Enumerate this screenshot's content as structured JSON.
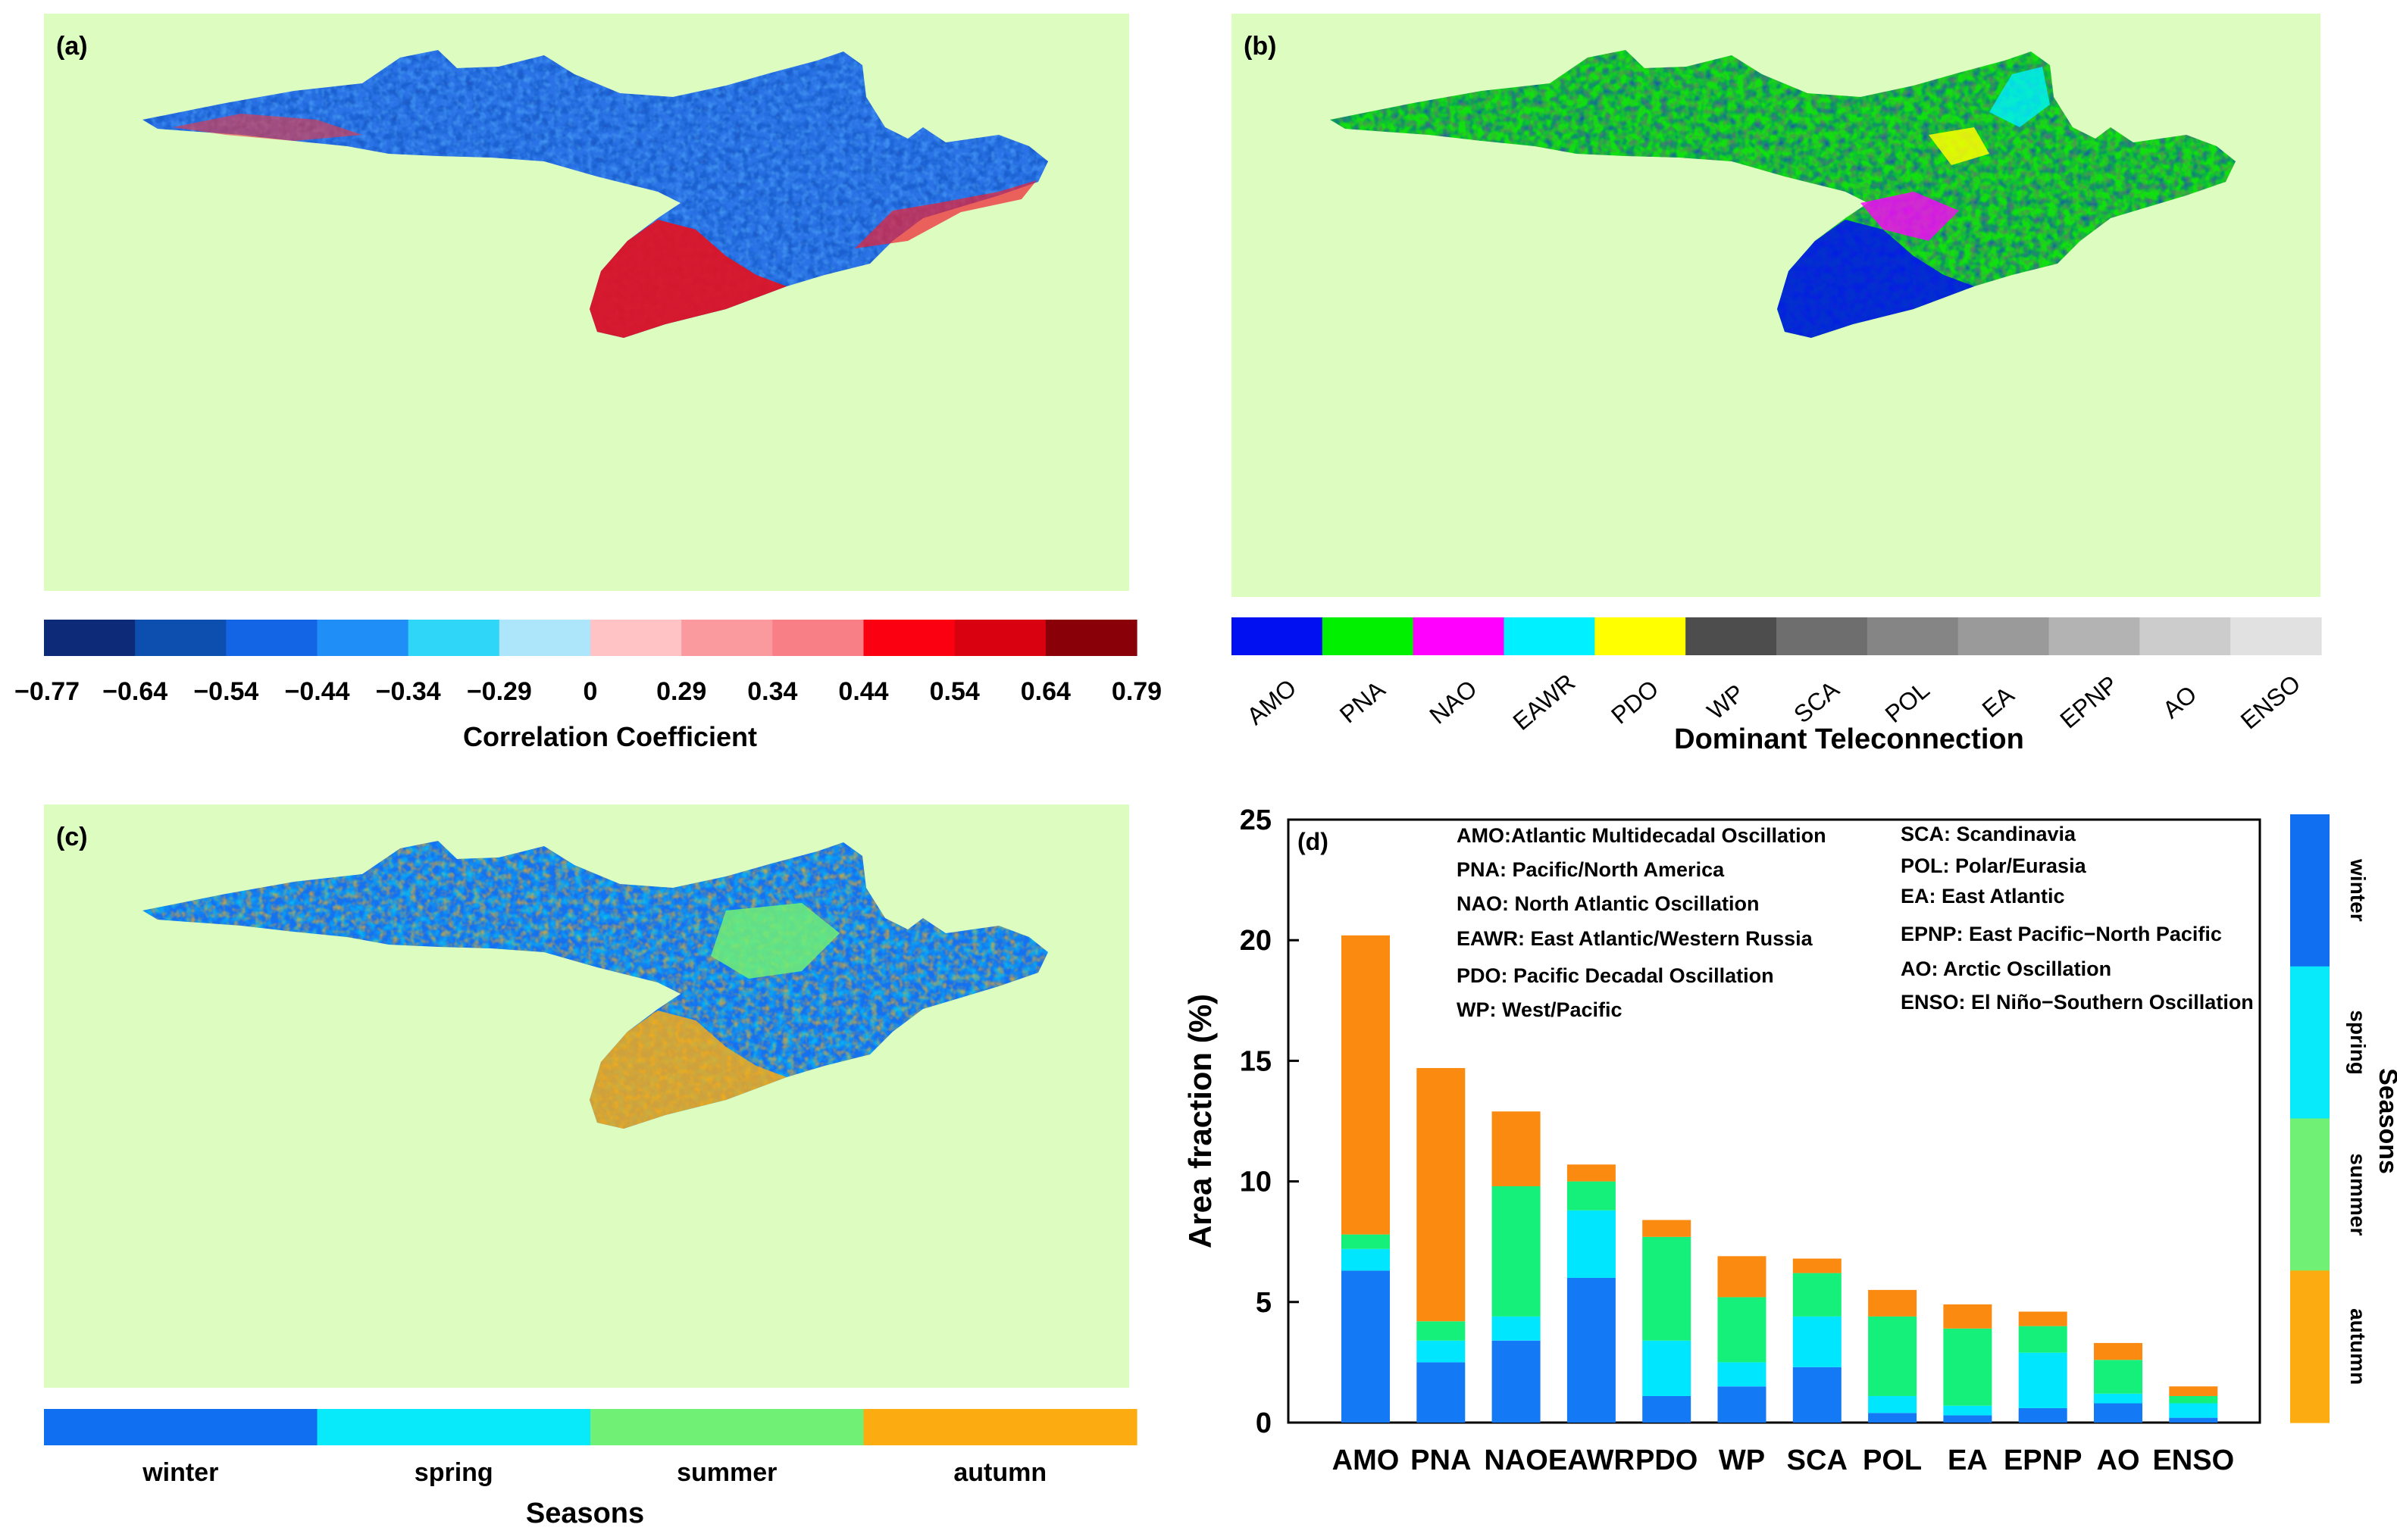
{
  "colors": {
    "map_background": "#ddfcc0",
    "correlation": [
      "#0c2a78",
      "#0d4fae",
      "#1464e6",
      "#1f8ef7",
      "#30d6f8",
      "#ade6fb",
      "#ffc3c6",
      "#fa9a9f",
      "#f77f85",
      "#fb0010",
      "#d90010",
      "#8a0009"
    ],
    "teleconnection": [
      "#0010f0",
      "#00f000",
      "#ff00ff",
      "#00f0ff",
      "#ffff00",
      "#4d4d4d",
      "#6e6e6e",
      "#858585",
      "#9a9a9a",
      "#b3b3b3",
      "#cccccc",
      "#e1e1e1"
    ],
    "seasons": [
      "#0f6ff0",
      "#08eaf9",
      "#70f075",
      "#fcac10"
    ],
    "bar_winter": "#1479f5",
    "bar_spring": "#00e6ff",
    "bar_summer": "#14f07a",
    "bar_autumn": "#fb8a10"
  },
  "panel_a": {
    "label": "(a)",
    "colorbar_ticks": [
      "−0.77",
      "−0.64",
      "−0.54",
      "−0.44",
      "−0.34",
      "−0.29",
      "0",
      "0.29",
      "0.34",
      "0.44",
      "0.54",
      "0.64",
      "0.79"
    ],
    "colorbar_title": "Correlation Coefficient"
  },
  "panel_b": {
    "label": "(b)",
    "legend_labels": [
      "AMO",
      "PNA",
      "NAO",
      "EAWR",
      "PDO",
      "WP",
      "SCA",
      "POL",
      "EA",
      "EPNP",
      "AO",
      "ENSO"
    ],
    "legend_title": "Dominant Teleconnection"
  },
  "panel_c": {
    "label": "(c)",
    "legend_labels": [
      "winter",
      "spring",
      "summer",
      "autumn"
    ],
    "legend_title": "Seasons"
  },
  "panel_d": {
    "label": "(d)",
    "abbrev_left": [
      "AMO:Atlantic Multidecadal Oscillation",
      "PNA: Pacific/North America",
      "NAO: North Atlantic Oscillation",
      "EAWR: East Atlantic/Western Russia",
      "PDO: Pacific Decadal Oscillation",
      "WP: West/Pacific"
    ],
    "abbrev_right": [
      "SCA: Scandinavia",
      "POL: Polar/Eurasia",
      "EA: East Atlantic",
      "EPNP: East Pacific−North Pacific",
      "AO: Arctic Oscillation",
      "ENSO: El Niño−Southern Oscillation"
    ],
    "season_bar_labels": [
      "winter",
      "spring",
      "summer",
      "autumn"
    ],
    "season_bar_title": "Seasons"
  },
  "chart_data": {
    "type": "bar",
    "title": "(d)",
    "xlabel": "",
    "ylabel": "Area fraction (%)",
    "ylim": [
      0,
      25
    ],
    "yticks": [
      "0",
      "5",
      "10",
      "15",
      "20",
      "25"
    ],
    "stacked": true,
    "categories": [
      "AMO",
      "PNA",
      "NAO",
      "EAWR",
      "PDO",
      "WP",
      "SCA",
      "POL",
      "EA",
      "EPNP",
      "AO",
      "ENSO"
    ],
    "series": [
      {
        "name": "winter",
        "values": [
          6.3,
          2.5,
          3.4,
          6.0,
          1.1,
          1.5,
          2.3,
          0.4,
          0.3,
          0.6,
          0.8,
          0.2
        ]
      },
      {
        "name": "spring",
        "values": [
          0.9,
          0.9,
          1.0,
          2.8,
          2.3,
          1.0,
          2.1,
          0.7,
          0.4,
          2.3,
          0.4,
          0.6
        ]
      },
      {
        "name": "summer",
        "values": [
          0.6,
          0.8,
          5.4,
          1.2,
          4.3,
          2.7,
          1.8,
          3.3,
          3.2,
          1.1,
          1.4,
          0.3
        ]
      },
      {
        "name": "autumn",
        "values": [
          12.4,
          10.5,
          3.1,
          0.7,
          0.7,
          1.7,
          0.6,
          1.1,
          1.0,
          0.6,
          0.7,
          0.4
        ]
      }
    ]
  }
}
